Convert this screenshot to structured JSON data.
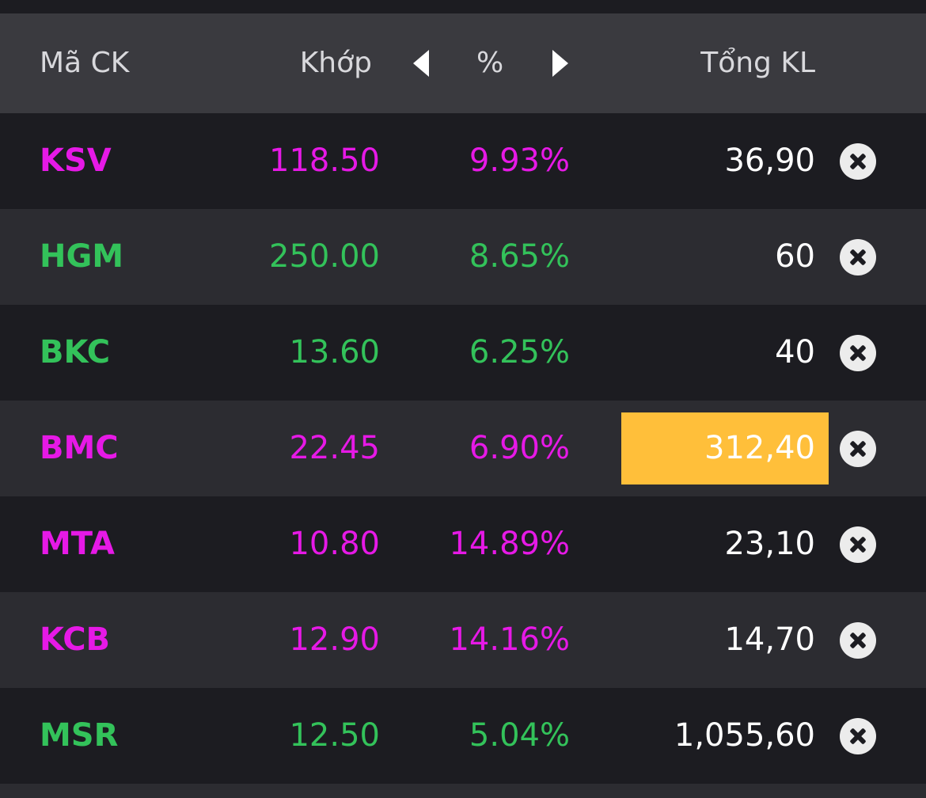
{
  "header": {
    "symbol": "Mã CK",
    "price": "Khớp",
    "percent": "%",
    "volume": "Tổng KL"
  },
  "colors": {
    "up_ceiling": "#e619e6",
    "up": "#33c25a",
    "highlight": "#ffbf3a"
  },
  "rows": [
    {
      "symbol": "KSV",
      "price": "118.50",
      "pct": "9.93%",
      "volume": "36,90",
      "color": "#e619e6",
      "highlight": false
    },
    {
      "symbol": "HGM",
      "price": "250.00",
      "pct": "8.65%",
      "volume": "60",
      "color": "#33c25a",
      "highlight": false
    },
    {
      "symbol": "BKC",
      "price": "13.60",
      "pct": "6.25%",
      "volume": "40",
      "color": "#33c25a",
      "highlight": false
    },
    {
      "symbol": "BMC",
      "price": "22.45",
      "pct": "6.90%",
      "volume": "312,40",
      "color": "#e619e6",
      "highlight": true
    },
    {
      "symbol": "MTA",
      "price": "10.80",
      "pct": "14.89%",
      "volume": "23,10",
      "color": "#e619e6",
      "highlight": false
    },
    {
      "symbol": "KCB",
      "price": "12.90",
      "pct": "14.16%",
      "volume": "14,70",
      "color": "#e619e6",
      "highlight": false
    },
    {
      "symbol": "MSR",
      "price": "12.50",
      "pct": "5.04%",
      "volume": "1,055,60",
      "color": "#33c25a",
      "highlight": false
    }
  ]
}
